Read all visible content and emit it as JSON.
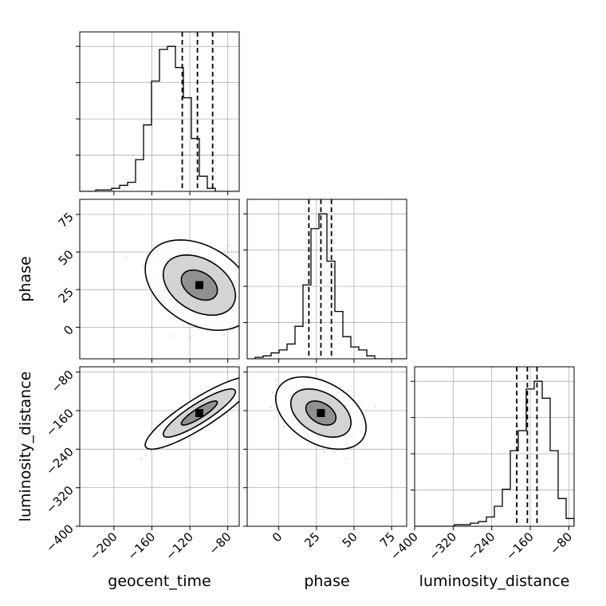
{
  "chart_data": {
    "type": "corner",
    "parameters": [
      "geocent_time",
      "phase",
      "luminosity_distance"
    ],
    "ranges": {
      "geocent_time": [
        -236,
        -68
      ],
      "phase": [
        -21,
        85
      ],
      "luminosity_distance": [
        -400,
        -69
      ]
    },
    "ticks": {
      "geocent_time": [
        -200,
        -160,
        -120,
        -80
      ],
      "phase": [
        0,
        25,
        50,
        75
      ],
      "luminosity_distance": [
        -400,
        -320,
        -240,
        -160,
        -80
      ]
    },
    "tick_labels": {
      "geocent_time": [
        "−200",
        "−160",
        "−120",
        "−80"
      ],
      "phase": [
        "0",
        "25",
        "50",
        "75"
      ],
      "luminosity_distance": [
        "−400",
        "−320",
        "−240",
        "−160",
        "−80"
      ]
    },
    "axis_labels": {
      "geocent_time": "geocent_time",
      "phase": "phase",
      "luminosity_distance": "luminosity_distance"
    },
    "quantiles": {
      "geocent_time": [
        -128,
        -112,
        -96
      ],
      "phase": [
        20,
        28,
        35
      ],
      "luminosity_distance": [
        -188,
        -166,
        -146
      ]
    },
    "means": {
      "geocent_time": -110,
      "phase": 28,
      "luminosity_distance": -165
    },
    "histograms": {
      "geocent_time": {
        "edges": [
          -236,
          -227.6,
          -219.2,
          -210.8,
          -202.4,
          -194,
          -185.6,
          -177.2,
          -168.8,
          -160.4,
          -152,
          -143.6,
          -135.2,
          -126.8,
          -118.4,
          -110,
          -101.6,
          -93.2,
          -84.8,
          -76.4,
          -68
        ],
        "counts": [
          0,
          0,
          1,
          1,
          2,
          4,
          6,
          21,
          44,
          73,
          94,
          96,
          82,
          62,
          35,
          10,
          2,
          0,
          0,
          0
        ]
      },
      "phase": {
        "edges": [
          -21,
          -15.7,
          -10.4,
          -5.1,
          0.2,
          5.5,
          10.8,
          16.1,
          21.4,
          26.7,
          32,
          37.3,
          42.6,
          47.9,
          53.2,
          58.5,
          63.8,
          69.1,
          74.4,
          79.7,
          85
        ],
        "counts": [
          0,
          1,
          2,
          4,
          6,
          10,
          22,
          50,
          88,
          98,
          66,
          32,
          15,
          8,
          6,
          2,
          0,
          0,
          0,
          0
        ]
      },
      "luminosity_distance": {
        "edges": [
          -400,
          -383.45,
          -366.9,
          -350.35,
          -333.8,
          -317.25,
          -300.7,
          -284.15,
          -267.6,
          -251.05,
          -234.5,
          -217.95,
          -201.4,
          -184.85,
          -168.3,
          -151.75,
          -135.2,
          -118.65,
          -102.1,
          -85.55,
          -69
        ],
        "counts": [
          0,
          0,
          0,
          0,
          0,
          1,
          1,
          2,
          3,
          6,
          13,
          24,
          49,
          62,
          89,
          94,
          83,
          49,
          18,
          5
        ]
      }
    },
    "contour_levels": [
      0.393,
      0.865,
      0.989
    ],
    "correlations": {
      "phase_vs_geocent_time": -0.35,
      "luminosity_distance_vs_geocent_time": 0.88,
      "luminosity_distance_vs_phase": -0.4
    },
    "stddevs": {
      "geocent_time": 19,
      "phase": 10,
      "luminosity_distance": 25
    },
    "grid": true,
    "colors": {
      "histogram": "#000000",
      "scatter": "#8c8c8c",
      "grid": "#b0b0b0"
    }
  }
}
